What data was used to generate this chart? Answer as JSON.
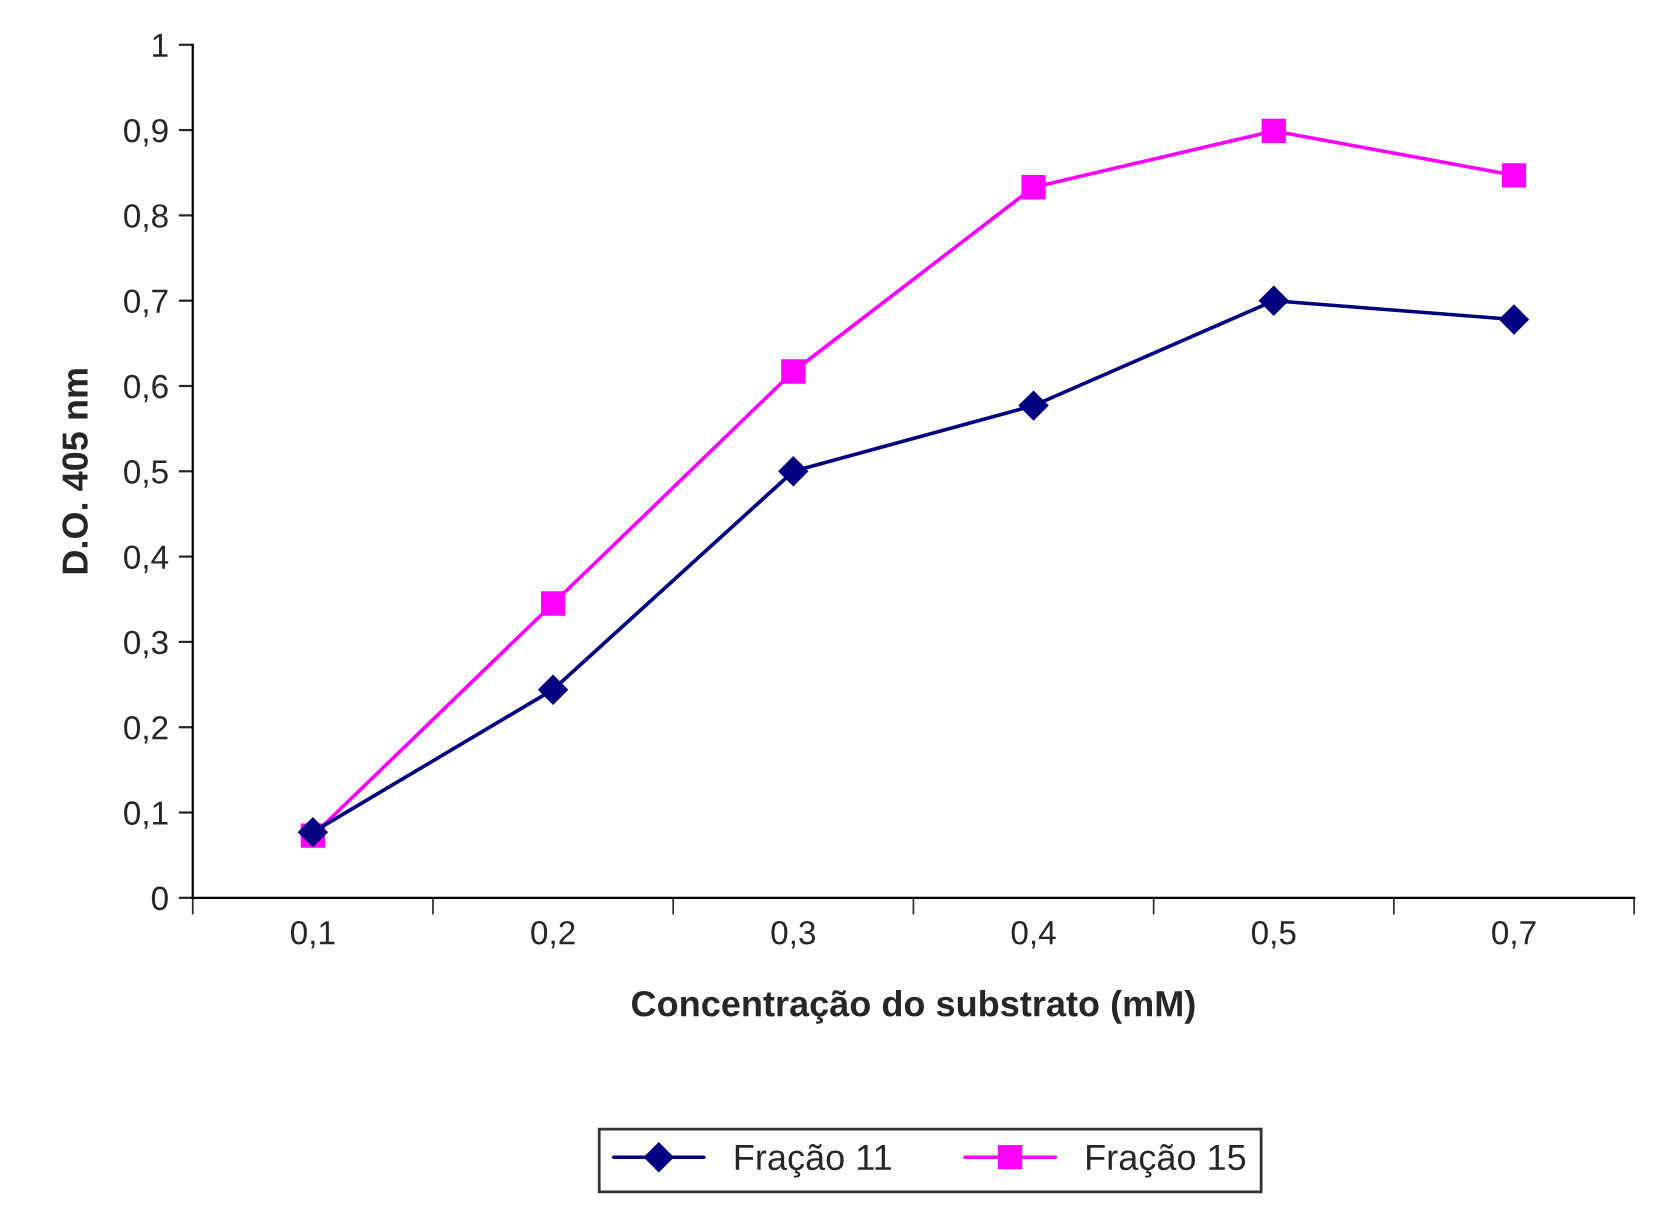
{
  "chart_data": {
    "type": "line",
    "xlabel": "Concentração do substrato (mM)",
    "ylabel": "D.O. 405 nm",
    "categories": [
      "0,1",
      "0,2",
      "0,3",
      "0,4",
      "0,5",
      "0,7"
    ],
    "series": [
      {
        "name": "Fração 11",
        "color": "#000080",
        "marker": "diamond",
        "values": [
          0.077,
          0.244,
          0.5,
          0.577,
          0.7,
          0.678
        ]
      },
      {
        "name": "Fração 15",
        "color": "#ff00ff",
        "marker": "square",
        "values": [
          0.073,
          0.345,
          0.617,
          0.833,
          0.899,
          0.847
        ]
      }
    ],
    "ylim": [
      0,
      1
    ],
    "yticks": [
      0,
      {
        "value": 0.1,
        "label": "0,1"
      },
      {
        "value": 0.2,
        "label": "0,2"
      },
      {
        "value": 0.3,
        "label": "0,3"
      },
      {
        "value": 0.4,
        "label": "0,4"
      },
      {
        "value": 0.5,
        "label": "0,5"
      },
      {
        "value": 0.6,
        "label": "0,6"
      },
      {
        "value": 0.7,
        "label": "0,7"
      },
      {
        "value": 0.8,
        "label": "0,8"
      },
      {
        "value": 0.9,
        "label": "0,9"
      },
      1
    ],
    "grid": false,
    "legend": "bottom",
    "line_style": "solid"
  }
}
